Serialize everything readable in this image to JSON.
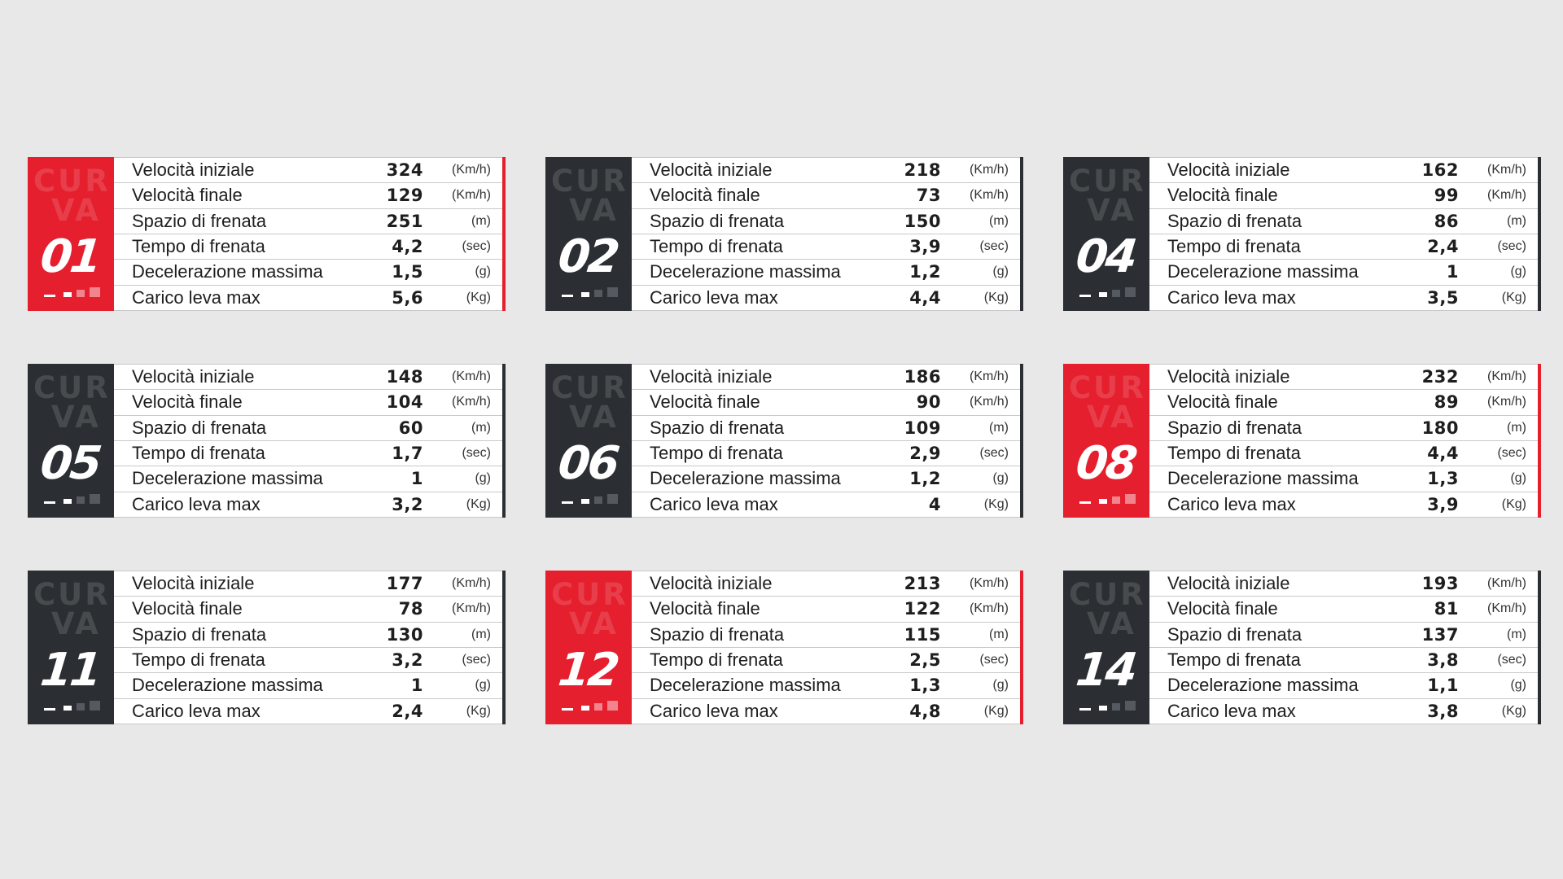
{
  "curva_word": [
    "CUR",
    "VA"
  ],
  "colors": {
    "red": "#e51f2e",
    "dark": "#2b2e32"
  },
  "cards": [
    {
      "number": "01",
      "color": "red",
      "rows": [
        {
          "label": "Velocità iniziale",
          "value": "324",
          "unit": "(Km/h)"
        },
        {
          "label": "Velocità finale",
          "value": "129",
          "unit": "(Km/h)"
        },
        {
          "label": "Spazio di frenata",
          "value": "251",
          "unit": "(m)"
        },
        {
          "label": "Tempo di frenata",
          "value": "4,2",
          "unit": "(sec)"
        },
        {
          "label": "Decelerazione massima",
          "value": "1,5",
          "unit": "(g)"
        },
        {
          "label": "Carico leva max",
          "value": "5,6",
          "unit": "(Kg)"
        }
      ]
    },
    {
      "number": "02",
      "color": "dark",
      "rows": [
        {
          "label": "Velocità iniziale",
          "value": "218",
          "unit": "(Km/h)"
        },
        {
          "label": "Velocità finale",
          "value": "73",
          "unit": "(Km/h)"
        },
        {
          "label": "Spazio di frenata",
          "value": "150",
          "unit": "(m)"
        },
        {
          "label": "Tempo di frenata",
          "value": "3,9",
          "unit": "(sec)"
        },
        {
          "label": "Decelerazione massima",
          "value": "1,2",
          "unit": "(g)"
        },
        {
          "label": "Carico leva max",
          "value": "4,4",
          "unit": "(Kg)"
        }
      ]
    },
    {
      "number": "04",
      "color": "dark",
      "rows": [
        {
          "label": "Velocità iniziale",
          "value": "162",
          "unit": "(Km/h)"
        },
        {
          "label": "Velocità finale",
          "value": "99",
          "unit": "(Km/h)"
        },
        {
          "label": "Spazio di frenata",
          "value": "86",
          "unit": "(m)"
        },
        {
          "label": "Tempo di frenata",
          "value": "2,4",
          "unit": "(sec)"
        },
        {
          "label": "Decelerazione massima",
          "value": "1",
          "unit": "(g)"
        },
        {
          "label": "Carico leva max",
          "value": "3,5",
          "unit": "(Kg)"
        }
      ]
    },
    {
      "number": "05",
      "color": "dark",
      "rows": [
        {
          "label": "Velocità iniziale",
          "value": "148",
          "unit": "(Km/h)"
        },
        {
          "label": "Velocità finale",
          "value": "104",
          "unit": "(Km/h)"
        },
        {
          "label": "Spazio di frenata",
          "value": "60",
          "unit": "(m)"
        },
        {
          "label": "Tempo di frenata",
          "value": "1,7",
          "unit": "(sec)"
        },
        {
          "label": "Decelerazione massima",
          "value": "1",
          "unit": "(g)"
        },
        {
          "label": "Carico leva max",
          "value": "3,2",
          "unit": "(Kg)"
        }
      ]
    },
    {
      "number": "06",
      "color": "dark",
      "rows": [
        {
          "label": "Velocità iniziale",
          "value": "186",
          "unit": "(Km/h)"
        },
        {
          "label": "Velocità finale",
          "value": "90",
          "unit": "(Km/h)"
        },
        {
          "label": "Spazio di frenata",
          "value": "109",
          "unit": "(m)"
        },
        {
          "label": "Tempo di frenata",
          "value": "2,9",
          "unit": "(sec)"
        },
        {
          "label": "Decelerazione massima",
          "value": "1,2",
          "unit": "(g)"
        },
        {
          "label": "Carico leva max",
          "value": "4",
          "unit": "(Kg)"
        }
      ]
    },
    {
      "number": "08",
      "color": "red",
      "rows": [
        {
          "label": "Velocità iniziale",
          "value": "232",
          "unit": "(Km/h)"
        },
        {
          "label": "Velocità finale",
          "value": "89",
          "unit": "(Km/h)"
        },
        {
          "label": "Spazio di frenata",
          "value": "180",
          "unit": "(m)"
        },
        {
          "label": "Tempo di frenata",
          "value": "4,4",
          "unit": "(sec)"
        },
        {
          "label": "Decelerazione massima",
          "value": "1,3",
          "unit": "(g)"
        },
        {
          "label": "Carico leva max",
          "value": "3,9",
          "unit": "(Kg)"
        }
      ]
    },
    {
      "number": "11",
      "color": "dark",
      "rows": [
        {
          "label": "Velocità iniziale",
          "value": "177",
          "unit": "(Km/h)"
        },
        {
          "label": "Velocità finale",
          "value": "78",
          "unit": "(Km/h)"
        },
        {
          "label": "Spazio di frenata",
          "value": "130",
          "unit": "(m)"
        },
        {
          "label": "Tempo di frenata",
          "value": "3,2",
          "unit": "(sec)"
        },
        {
          "label": "Decelerazione massima",
          "value": "1",
          "unit": "(g)"
        },
        {
          "label": "Carico leva max",
          "value": "2,4",
          "unit": "(Kg)"
        }
      ]
    },
    {
      "number": "12",
      "color": "red",
      "rows": [
        {
          "label": "Velocità iniziale",
          "value": "213",
          "unit": "(Km/h)"
        },
        {
          "label": "Velocità finale",
          "value": "122",
          "unit": "(Km/h)"
        },
        {
          "label": "Spazio di frenata",
          "value": "115",
          "unit": "(m)"
        },
        {
          "label": "Tempo di frenata",
          "value": "2,5",
          "unit": "(sec)"
        },
        {
          "label": "Decelerazione massima",
          "value": "1,3",
          "unit": "(g)"
        },
        {
          "label": "Carico leva max",
          "value": "4,8",
          "unit": "(Kg)"
        }
      ]
    },
    {
      "number": "14",
      "color": "dark",
      "rows": [
        {
          "label": "Velocità iniziale",
          "value": "193",
          "unit": "(Km/h)"
        },
        {
          "label": "Velocità finale",
          "value": "81",
          "unit": "(Km/h)"
        },
        {
          "label": "Spazio di frenata",
          "value": "137",
          "unit": "(m)"
        },
        {
          "label": "Tempo di frenata",
          "value": "3,8",
          "unit": "(sec)"
        },
        {
          "label": "Decelerazione massima",
          "value": "1,1",
          "unit": "(g)"
        },
        {
          "label": "Carico leva max",
          "value": "3,8",
          "unit": "(Kg)"
        }
      ]
    }
  ]
}
